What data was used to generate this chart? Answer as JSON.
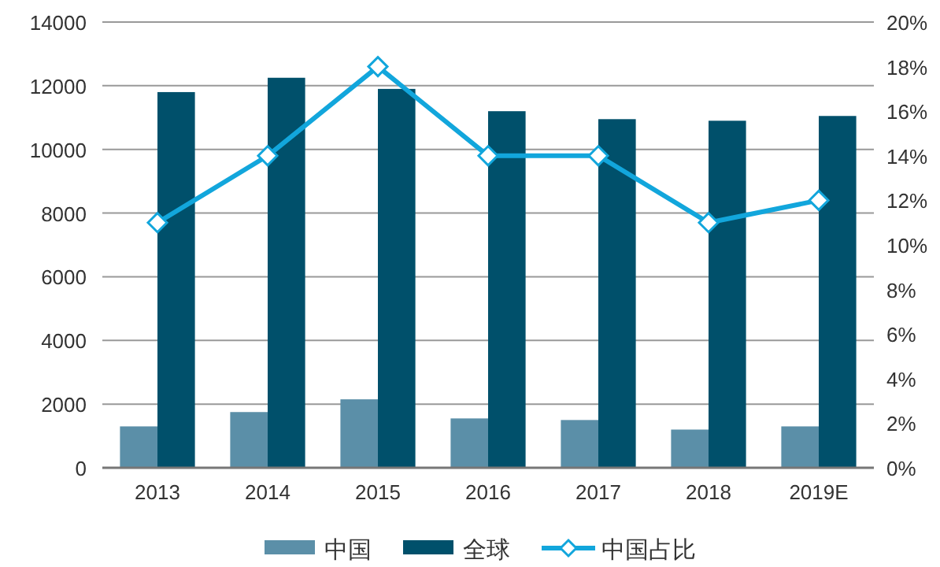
{
  "chart_data": {
    "type": "bar",
    "categories": [
      "2013",
      "2014",
      "2015",
      "2016",
      "2017",
      "2018",
      "2019E"
    ],
    "series": [
      {
        "name": "中国",
        "color": "#5b8fa8",
        "values": [
          1300,
          1750,
          2150,
          1550,
          1500,
          1200,
          1300
        ]
      },
      {
        "name": "全球",
        "color": "#00506b",
        "values": [
          11800,
          12250,
          11900,
          11200,
          10950,
          10900,
          11050
        ]
      },
      {
        "name": "中国占比",
        "type": "line",
        "axis": "y2",
        "color": "#12a6dc",
        "marker": "diamond",
        "values": [
          11,
          14,
          18,
          14,
          14,
          11,
          12
        ]
      }
    ],
    "ylim": [
      0,
      14000
    ],
    "yticks": [
      0,
      2000,
      4000,
      6000,
      8000,
      10000,
      12000,
      14000
    ],
    "y2lim": [
      0,
      20
    ],
    "y2ticks": [
      {
        "value": 0,
        "label": "0%"
      },
      {
        "value": 2,
        "label": "2%"
      },
      {
        "value": 4,
        "label": "4%"
      },
      {
        "value": 6,
        "label": "6%"
      },
      {
        "value": 8,
        "label": "8%"
      },
      {
        "value": 10,
        "label": "10%"
      },
      {
        "value": 12,
        "label": "12%"
      },
      {
        "value": 14,
        "label": "14%"
      },
      {
        "value": 16,
        "label": "16%"
      },
      {
        "value": 18,
        "label": "18%"
      },
      {
        "value": 20,
        "label": "20%"
      }
    ],
    "grid": "y",
    "legend": "bottom"
  }
}
